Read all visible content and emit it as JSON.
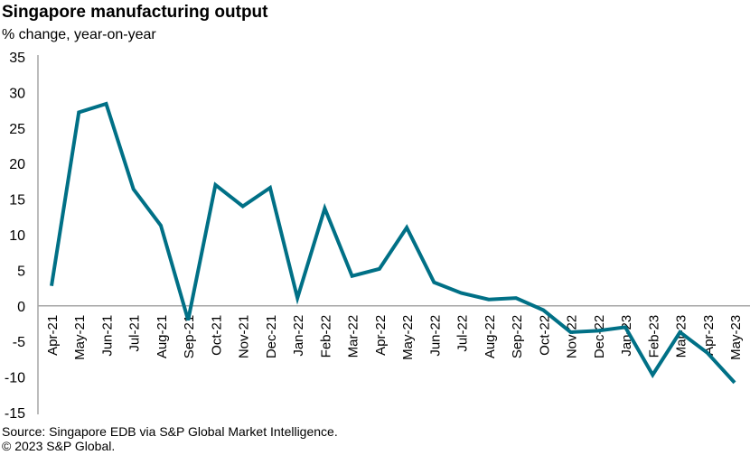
{
  "chart_data": {
    "type": "line",
    "title": "Singapore manufacturing output",
    "subtitle": "% change, year-on-year",
    "xlabel": "",
    "ylabel": "",
    "ylim": [
      -15,
      35
    ],
    "yticks": [
      35,
      30,
      25,
      20,
      15,
      10,
      5,
      0,
      -5,
      -10,
      -15
    ],
    "grid": false,
    "categories": [
      "Apr-21",
      "May-21",
      "Jun-21",
      "Jul-21",
      "Aug-21",
      "Sep-21",
      "Oct-21",
      "Nov-21",
      "Dec-21",
      "Jan-22",
      "Feb-22",
      "Mar-22",
      "Apr-22",
      "May-22",
      "Jun-22",
      "Jul-22",
      "Aug-22",
      "Sep-22",
      "Oct-22",
      "Nov-22",
      "Dec-22",
      "Jan-23",
      "Feb-23",
      "Mar-23",
      "Apr-23",
      "May-23"
    ],
    "series": [
      {
        "name": "Singapore manufacturing output",
        "color": "#007086",
        "values": [
          2.8,
          27.2,
          28.4,
          16.4,
          11.3,
          -2.0,
          17.0,
          14.0,
          16.6,
          1.1,
          13.7,
          4.2,
          5.2,
          11.0,
          3.3,
          1.8,
          0.9,
          1.1,
          -0.6,
          -3.7,
          -3.5,
          -3.0,
          -9.7,
          -3.7,
          -6.6,
          -10.8
        ]
      }
    ]
  },
  "footer": {
    "source": "Source: Singapore EDB via S&P Global Market Intelligence.",
    "copyright": "© 2023 S&P Global."
  }
}
